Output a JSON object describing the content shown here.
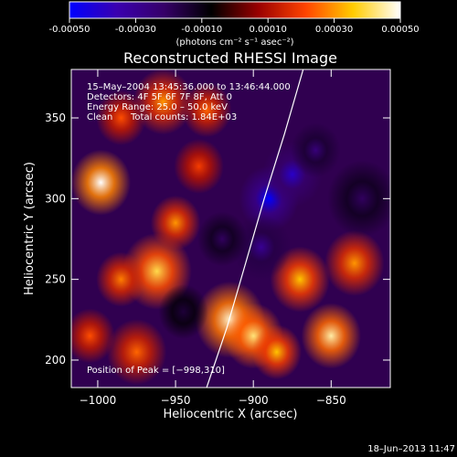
{
  "colorbar": {
    "ticks": [
      "-0.00050",
      "-0.00030",
      "-0.00010",
      "0.00010",
      "0.00030",
      "0.00050"
    ],
    "unit_label": "(photons cm⁻² s⁻¹ asec⁻²)",
    "range": [
      -0.0005,
      0.0005
    ],
    "colormap": [
      "#0000ff",
      "#3a00b0",
      "#360068",
      "#000000",
      "#9a0000",
      "#ff4400",
      "#ffcc00",
      "#ffffff"
    ]
  },
  "chart_data": {
    "type": "heatmap",
    "title": "Reconstructed RHESSI Image",
    "xlabel": "Heliocentric X (arcsec)",
    "ylabel": "Heliocentric Y (arcsec)",
    "xlim": [
      -1017,
      -812
    ],
    "ylim": [
      183,
      380
    ],
    "x_ticks": [
      -1000,
      -950,
      -900,
      -850
    ],
    "x_tick_labels": [
      "−1000",
      "−950",
      "−900",
      "−850"
    ],
    "y_ticks": [
      200,
      250,
      300,
      350
    ],
    "y_tick_labels": [
      "200",
      "250",
      "300",
      "350"
    ],
    "annotations": {
      "time": "15–May–2004 13:45:36.000 to 13:46:44.000",
      "detectors": "Detectors: 4F 5F 6F 7F 8F, Att 0",
      "energy": "Energy Range: 25.0 – 50.0 keV",
      "clean": "Clean",
      "counts": "Total counts: 1.84E+03",
      "peak": "Position of Peak = [−998,310]"
    },
    "peak_position": [
      -998,
      310
    ],
    "limb_points": [
      [
        -930,
        183
      ],
      [
        -917,
        220
      ],
      [
        -905,
        260
      ],
      [
        -893,
        300
      ],
      [
        -880,
        340
      ],
      [
        -868,
        380
      ]
    ],
    "blobs": [
      [
        -998,
        310,
        1.0,
        12
      ],
      [
        -962,
        255,
        0.8,
        14
      ],
      [
        -950,
        285,
        0.6,
        10
      ],
      [
        -915,
        225,
        0.95,
        14
      ],
      [
        -900,
        215,
        0.85,
        12
      ],
      [
        -885,
        205,
        0.7,
        10
      ],
      [
        -870,
        250,
        0.7,
        12
      ],
      [
        -850,
        215,
        0.9,
        12
      ],
      [
        -835,
        260,
        0.6,
        12
      ],
      [
        -985,
        250,
        0.55,
        10
      ],
      [
        -975,
        205,
        0.5,
        12
      ],
      [
        -1005,
        215,
        0.45,
        10
      ],
      [
        -958,
        360,
        0.6,
        12
      ],
      [
        -930,
        355,
        0.5,
        10
      ],
      [
        -985,
        350,
        0.45,
        10
      ],
      [
        -935,
        320,
        0.4,
        10
      ],
      [
        -890,
        300,
        -1.0,
        12
      ],
      [
        -875,
        315,
        -0.8,
        12
      ],
      [
        -895,
        270,
        -0.6,
        12
      ],
      [
        -860,
        330,
        -0.5,
        10
      ],
      [
        -920,
        275,
        -0.4,
        10
      ],
      [
        -830,
        300,
        -0.4,
        14
      ],
      [
        -945,
        230,
        -0.3,
        10
      ]
    ]
  },
  "footer": {
    "timestamp": "18–Jun–2013 11:47"
  }
}
